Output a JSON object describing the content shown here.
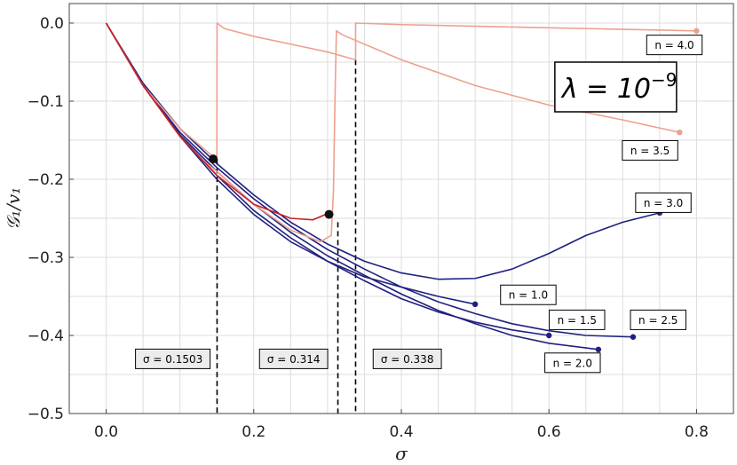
{
  "chart_data": {
    "type": "line",
    "xlabel": "σ",
    "ylabel": "𝒢₁/v₁",
    "xlim": [
      -0.05,
      0.85
    ],
    "ylim": [
      -0.5,
      0.025
    ],
    "x_ticks": [
      {
        "value": 0.0,
        "label": "0.0"
      },
      {
        "value": 0.2,
        "label": "0.2"
      },
      {
        "value": 0.4,
        "label": "0.4"
      },
      {
        "value": 0.6,
        "label": "0.6"
      },
      {
        "value": 0.8,
        "label": "0.8"
      }
    ],
    "y_ticks": [
      {
        "value": 0.0,
        "label": "0.0"
      },
      {
        "value": -0.1,
        "label": "−0.1"
      },
      {
        "value": -0.2,
        "label": "−0.2"
      },
      {
        "value": -0.3,
        "label": "−0.3"
      },
      {
        "value": -0.4,
        "label": "−0.4"
      },
      {
        "value": -0.5,
        "label": "−0.5"
      }
    ],
    "grid": true,
    "annotation_big": {
      "base": "λ = 10",
      "sup": "−9"
    },
    "colors": {
      "navy": "#1f2080",
      "salmon": "#eea08e",
      "red": "#cc1f1f",
      "dash": "#000000",
      "grid": "#dcdcdc"
    },
    "series": [
      {
        "label": "n = 1.0",
        "color": "#1f2080",
        "end_point": [
          0.5,
          -0.36
        ],
        "points": [
          [
            0,
            0
          ],
          [
            0.05,
            -0.08
          ],
          [
            0.1,
            -0.145
          ],
          [
            0.15,
            -0.2
          ],
          [
            0.2,
            -0.245
          ],
          [
            0.25,
            -0.28
          ],
          [
            0.3,
            -0.305
          ],
          [
            0.35,
            -0.325
          ],
          [
            0.4,
            -0.338
          ],
          [
            0.45,
            -0.35
          ],
          [
            0.5,
            -0.36
          ]
        ]
      },
      {
        "label": "n = 1.5",
        "color": "#1f2080",
        "end_point": [
          0.6,
          -0.4
        ],
        "points": [
          [
            0,
            0
          ],
          [
            0.05,
            -0.08
          ],
          [
            0.1,
            -0.145
          ],
          [
            0.15,
            -0.195
          ],
          [
            0.2,
            -0.24
          ],
          [
            0.25,
            -0.275
          ],
          [
            0.3,
            -0.305
          ],
          [
            0.35,
            -0.33
          ],
          [
            0.4,
            -0.353
          ],
          [
            0.45,
            -0.37
          ],
          [
            0.5,
            -0.383
          ],
          [
            0.55,
            -0.393
          ],
          [
            0.6,
            -0.4
          ]
        ]
      },
      {
        "label": "n = 2.0",
        "color": "#1f2080",
        "end_point": [
          0.667,
          -0.418
        ],
        "points": [
          [
            0,
            0
          ],
          [
            0.05,
            -0.08
          ],
          [
            0.1,
            -0.143
          ],
          [
            0.15,
            -0.19
          ],
          [
            0.2,
            -0.232
          ],
          [
            0.25,
            -0.268
          ],
          [
            0.3,
            -0.298
          ],
          [
            0.35,
            -0.323
          ],
          [
            0.4,
            -0.347
          ],
          [
            0.45,
            -0.368
          ],
          [
            0.5,
            -0.385
          ],
          [
            0.55,
            -0.4
          ],
          [
            0.6,
            -0.41
          ],
          [
            0.667,
            -0.418
          ]
        ]
      },
      {
        "label": "n = 2.5",
        "color": "#1f2080",
        "end_point": [
          0.714,
          -0.402
        ],
        "points": [
          [
            0,
            0
          ],
          [
            0.05,
            -0.08
          ],
          [
            0.1,
            -0.14
          ],
          [
            0.15,
            -0.185
          ],
          [
            0.2,
            -0.225
          ],
          [
            0.25,
            -0.26
          ],
          [
            0.3,
            -0.29
          ],
          [
            0.35,
            -0.315
          ],
          [
            0.4,
            -0.338
          ],
          [
            0.45,
            -0.357
          ],
          [
            0.5,
            -0.372
          ],
          [
            0.55,
            -0.385
          ],
          [
            0.6,
            -0.394
          ],
          [
            0.65,
            -0.4
          ],
          [
            0.714,
            -0.402
          ]
        ]
      },
      {
        "label": "n = 3.0",
        "color": "#1f2080",
        "end_point": [
          0.75,
          -0.243
        ],
        "points": [
          [
            0,
            0
          ],
          [
            0.05,
            -0.077
          ],
          [
            0.1,
            -0.135
          ],
          [
            0.15,
            -0.18
          ],
          [
            0.2,
            -0.22
          ],
          [
            0.25,
            -0.255
          ],
          [
            0.3,
            -0.283
          ],
          [
            0.35,
            -0.305
          ],
          [
            0.4,
            -0.32
          ],
          [
            0.45,
            -0.328
          ],
          [
            0.5,
            -0.327
          ],
          [
            0.55,
            -0.315
          ],
          [
            0.6,
            -0.295
          ],
          [
            0.65,
            -0.272
          ],
          [
            0.7,
            -0.255
          ],
          [
            0.75,
            -0.243
          ]
        ]
      },
      {
        "label": "n = 3.5",
        "color": "#eea08e",
        "end_point": [
          0.777,
          -0.14
        ],
        "points": [
          [
            0,
            0
          ],
          [
            0.05,
            -0.08
          ],
          [
            0.1,
            -0.145
          ],
          [
            0.13,
            -0.175
          ],
          [
            0.15,
            -0.19
          ],
          [
            0.2,
            -0.232
          ],
          [
            0.25,
            -0.265
          ],
          [
            0.29,
            -0.28
          ],
          [
            0.305,
            -0.272
          ],
          [
            0.308,
            -0.215
          ],
          [
            0.31,
            -0.1
          ],
          [
            0.312,
            -0.01
          ],
          [
            0.32,
            -0.015
          ],
          [
            0.4,
            -0.047
          ],
          [
            0.5,
            -0.08
          ],
          [
            0.6,
            -0.105
          ],
          [
            0.7,
            -0.124
          ],
          [
            0.777,
            -0.14
          ]
        ]
      },
      {
        "label": "n = 4.0",
        "color": "#eea08e",
        "end_point": [
          0.8,
          -0.01
        ],
        "points": [
          [
            0,
            0
          ],
          [
            0.05,
            -0.08
          ],
          [
            0.1,
            -0.135
          ],
          [
            0.15,
            -0.175
          ],
          [
            0.15,
            -0.14
          ],
          [
            0.1503,
            -0.0
          ],
          [
            0.16,
            -0.007
          ],
          [
            0.2,
            -0.017
          ],
          [
            0.25,
            -0.027
          ],
          [
            0.3,
            -0.037
          ],
          [
            0.338,
            -0.047
          ],
          [
            0.338,
            -0.0
          ],
          [
            0.4,
            -0.002
          ],
          [
            0.5,
            -0.004
          ],
          [
            0.6,
            -0.006
          ],
          [
            0.7,
            -0.008
          ],
          [
            0.8,
            -0.01
          ]
        ]
      },
      {
        "label": "",
        "color": "#cc1f1f",
        "end_point": null,
        "points": [
          [
            0,
            0
          ],
          [
            0.05,
            -0.08
          ],
          [
            0.1,
            -0.145
          ],
          [
            0.15,
            -0.195
          ],
          [
            0.2,
            -0.232
          ],
          [
            0.25,
            -0.25
          ],
          [
            0.28,
            -0.252
          ],
          [
            0.3,
            -0.244
          ]
        ]
      }
    ],
    "black_points": [
      [
        0.145,
        -0.174
      ],
      [
        0.302,
        -0.245
      ]
    ],
    "vlines": [
      {
        "x": 0.1503,
        "y_top": -0.174,
        "label": "σ = 0.1503"
      },
      {
        "x": 0.314,
        "y_top": -0.255,
        "label": "σ = 0.314"
      },
      {
        "x": 0.338,
        "y_top": -0.047,
        "label": "σ = 0.338"
      }
    ],
    "labels": [
      {
        "text": "n = 4.0",
        "x": 0.77,
        "y": -0.028
      },
      {
        "text": "n = 3.5",
        "x": 0.737,
        "y": -0.163
      },
      {
        "text": "n = 3.0",
        "x": 0.755,
        "y": -0.23
      },
      {
        "text": "n = 1.0",
        "x": 0.572,
        "y": -0.348
      },
      {
        "text": "n = 1.5",
        "x": 0.638,
        "y": -0.38
      },
      {
        "text": "n = 2.5",
        "x": 0.748,
        "y": -0.38
      },
      {
        "text": "n = 2.0",
        "x": 0.632,
        "y": -0.435
      }
    ]
  }
}
